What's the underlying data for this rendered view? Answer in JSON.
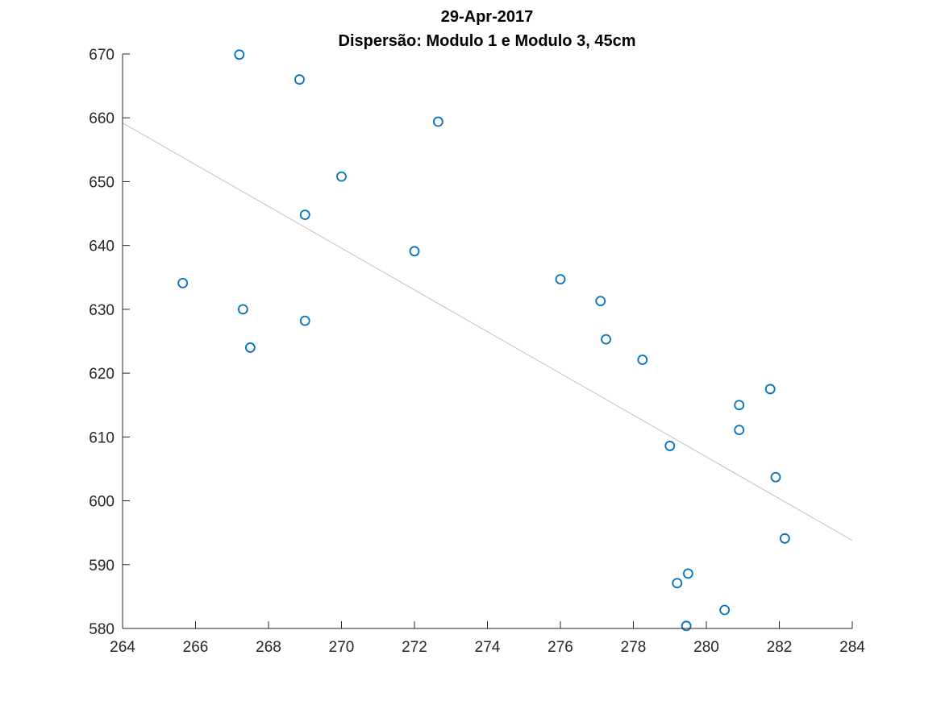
{
  "chart_data": {
    "type": "scatter",
    "title": "29-Apr-2017",
    "subtitle": "Dispersão: Modulo 1 e Modulo 3, 45cm",
    "xlabel": "",
    "ylabel": "",
    "xlim": [
      264,
      284
    ],
    "ylim": [
      580,
      670
    ],
    "x_ticks": [
      264,
      266,
      268,
      270,
      272,
      274,
      276,
      278,
      280,
      282,
      284
    ],
    "y_ticks": [
      580,
      590,
      600,
      610,
      620,
      630,
      640,
      650,
      660,
      670
    ],
    "grid": false,
    "legend": "none",
    "marker": "circle",
    "marker_color": "#0072bd",
    "fit_line_color": "#c0c0c0",
    "series": [
      {
        "points": [
          {
            "x": 265.65,
            "y": 634.1
          },
          {
            "x": 267.2,
            "y": 669.9
          },
          {
            "x": 267.3,
            "y": 630.0
          },
          {
            "x": 267.5,
            "y": 624.0
          },
          {
            "x": 268.85,
            "y": 666.0
          },
          {
            "x": 269.0,
            "y": 644.8
          },
          {
            "x": 269.0,
            "y": 628.2
          },
          {
            "x": 270.0,
            "y": 650.8
          },
          {
            "x": 272.0,
            "y": 639.1
          },
          {
            "x": 272.65,
            "y": 659.4
          },
          {
            "x": 276.0,
            "y": 634.7
          },
          {
            "x": 277.1,
            "y": 631.3
          },
          {
            "x": 277.25,
            "y": 625.3
          },
          {
            "x": 278.25,
            "y": 622.1
          },
          {
            "x": 279.0,
            "y": 608.6
          },
          {
            "x": 279.2,
            "y": 587.1
          },
          {
            "x": 279.45,
            "y": 580.4
          },
          {
            "x": 279.5,
            "y": 588.6
          },
          {
            "x": 280.5,
            "y": 582.9
          },
          {
            "x": 280.9,
            "y": 615.0
          },
          {
            "x": 280.9,
            "y": 611.1
          },
          {
            "x": 281.75,
            "y": 617.5
          },
          {
            "x": 281.9,
            "y": 603.7
          },
          {
            "x": 282.15,
            "y": 594.1
          }
        ]
      }
    ],
    "fit_line": {
      "x": [
        264,
        284
      ],
      "y": [
        659.2,
        593.8
      ]
    }
  }
}
